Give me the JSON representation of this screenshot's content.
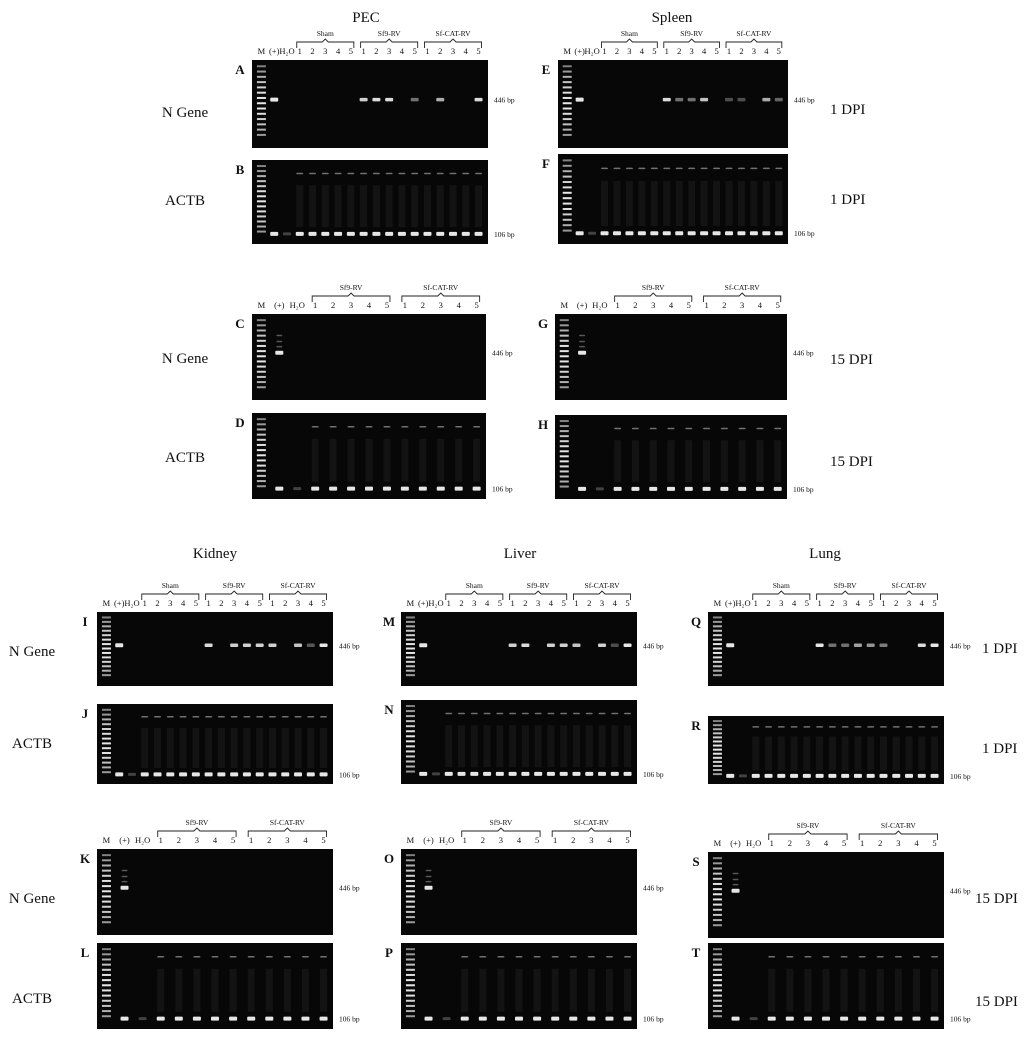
{
  "titles": {
    "pec": "PEC",
    "spleen": "Spleen",
    "kidney": "Kidney",
    "liver": "Liver",
    "lung": "Lung"
  },
  "row_labels": {
    "n_gene": "N Gene",
    "actb": "ACTB"
  },
  "dpi": {
    "d1": "1 DPI",
    "d15": "15 DPI"
  },
  "bp": {
    "n": "446 bp",
    "a": "106 bp"
  },
  "lanes": {
    "m": "M",
    "pos": "(+)",
    "h2o": "H₂O",
    "nums": [
      "1",
      "2",
      "3",
      "4",
      "5"
    ]
  },
  "groups": {
    "sham": "Sham",
    "sf9": "Sf9-RV",
    "sfcat": "Sf-CAT-RV"
  },
  "panels": [
    "A",
    "B",
    "C",
    "D",
    "E",
    "F",
    "G",
    "H",
    "I",
    "J",
    "K",
    "L",
    "M",
    "N",
    "O",
    "P",
    "Q",
    "R",
    "S",
    "T"
  ],
  "colors": {
    "gel": "#070707",
    "band": "#f2f2f2"
  }
}
